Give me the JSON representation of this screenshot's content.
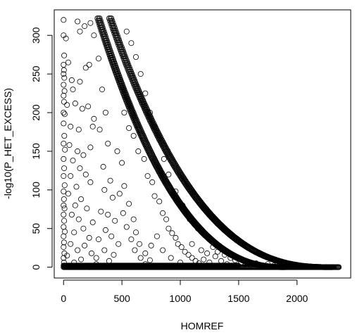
{
  "chart_data": {
    "type": "scatter",
    "title": "",
    "xlabel": "HOMREF",
    "ylabel": "-log10(P_HET_EXCESS)",
    "xlim": [
      -80,
      2460
    ],
    "ylim": [
      -14,
      333
    ],
    "x_ticks": [
      0,
      500,
      1000,
      1500,
      2000
    ],
    "y_ticks": [
      0,
      50,
      100,
      150,
      200,
      250,
      300
    ],
    "x_tick_labels": [
      "0",
      "500",
      "1000",
      "1500",
      "2000"
    ],
    "y_tick_labels": [
      "0",
      "50",
      "100",
      "150",
      "200",
      "250",
      "300"
    ],
    "marker": "open circle",
    "grid": false,
    "legend": "none",
    "series": [
      {
        "points": [
          [
            0,
            320
          ],
          [
            0,
            300
          ],
          [
            5,
            274
          ],
          [
            0,
            262
          ],
          [
            3,
            255
          ],
          [
            0,
            250
          ],
          [
            6,
            245
          ],
          [
            0,
            236
          ],
          [
            8,
            228
          ],
          [
            0,
            222
          ],
          [
            4,
            214
          ],
          [
            0,
            200
          ],
          [
            10,
            198
          ],
          [
            0,
            186
          ],
          [
            6,
            170
          ],
          [
            0,
            160
          ],
          [
            12,
            152
          ],
          [
            0,
            140
          ],
          [
            5,
            128
          ],
          [
            0,
            118
          ],
          [
            9,
            106
          ],
          [
            0,
            98
          ],
          [
            3,
            88
          ],
          [
            0,
            80
          ],
          [
            8,
            76
          ],
          [
            0,
            68
          ],
          [
            5,
            60
          ],
          [
            0,
            52
          ],
          [
            11,
            46
          ],
          [
            0,
            40
          ],
          [
            4,
            32
          ],
          [
            0,
            26
          ],
          [
            7,
            18
          ],
          [
            0,
            12
          ],
          [
            3,
            6
          ],
          [
            0,
            2
          ],
          [
            20,
            296
          ],
          [
            40,
            265
          ],
          [
            70,
            242
          ],
          [
            120,
            318
          ],
          [
            140,
            305
          ],
          [
            180,
            312
          ],
          [
            230,
            316
          ],
          [
            260,
            300
          ],
          [
            80,
            230
          ],
          [
            140,
            240
          ],
          [
            190,
            258
          ],
          [
            220,
            262
          ],
          [
            30,
            210
          ],
          [
            100,
            212
          ],
          [
            160,
            205
          ],
          [
            210,
            208
          ],
          [
            260,
            192
          ],
          [
            60,
            182
          ],
          [
            130,
            178
          ],
          [
            250,
            182
          ],
          [
            50,
            158
          ],
          [
            120,
            150
          ],
          [
            170,
            145
          ],
          [
            230,
            155
          ],
          [
            80,
            138
          ],
          [
            140,
            128
          ],
          [
            60,
            118
          ],
          [
            190,
            120
          ],
          [
            110,
            104
          ],
          [
            230,
            110
          ],
          [
            40,
            95
          ],
          [
            150,
            88
          ],
          [
            100,
            80
          ],
          [
            200,
            76
          ],
          [
            70,
            68
          ],
          [
            130,
            62
          ],
          [
            250,
            58
          ],
          [
            170,
            50
          ],
          [
            90,
            45
          ],
          [
            220,
            38
          ],
          [
            60,
            30
          ],
          [
            180,
            28
          ],
          [
            120,
            22
          ],
          [
            240,
            18
          ],
          [
            30,
            15
          ],
          [
            150,
            10
          ],
          [
            280,
            12
          ],
          [
            90,
            6
          ],
          [
            300,
            270
          ],
          [
            330,
            230
          ],
          [
            360,
            200
          ],
          [
            310,
            178
          ],
          [
            380,
            160
          ],
          [
            340,
            130
          ],
          [
            400,
            112
          ],
          [
            350,
            100
          ],
          [
            420,
            90
          ],
          [
            320,
            72
          ],
          [
            380,
            68
          ],
          [
            440,
            60
          ],
          [
            360,
            48
          ],
          [
            410,
            40
          ],
          [
            300,
            36
          ],
          [
            470,
            30
          ],
          [
            350,
            22
          ],
          [
            430,
            16
          ],
          [
            390,
            8
          ],
          [
            280,
            4
          ],
          [
            460,
            150
          ],
          [
            500,
            135
          ],
          [
            520,
            105
          ],
          [
            480,
            95
          ],
          [
            560,
            82
          ],
          [
            510,
            70
          ],
          [
            600,
            62
          ],
          [
            540,
            52
          ],
          [
            620,
            45
          ],
          [
            580,
            36
          ],
          [
            650,
            30
          ],
          [
            610,
            22
          ],
          [
            700,
            18
          ],
          [
            660,
            12
          ],
          [
            740,
            9
          ],
          [
            700,
            4
          ],
          [
            520,
            200
          ],
          [
            560,
            180
          ],
          [
            600,
            170
          ],
          [
            640,
            150
          ],
          [
            690,
            140
          ],
          [
            720,
            118
          ],
          [
            760,
            110
          ],
          [
            780,
            92
          ],
          [
            820,
            85
          ],
          [
            850,
            70
          ],
          [
            880,
            62
          ],
          [
            900,
            50
          ],
          [
            930,
            44
          ],
          [
            960,
            38
          ],
          [
            980,
            30
          ],
          [
            1010,
            26
          ],
          [
            1040,
            20
          ],
          [
            1070,
            16
          ],
          [
            1100,
            12
          ],
          [
            1130,
            8
          ],
          [
            1160,
            5
          ],
          [
            800,
            40
          ],
          [
            750,
            28
          ],
          [
            850,
            22
          ],
          [
            920,
            12
          ],
          [
            1000,
            6
          ],
          [
            1200,
            10
          ],
          [
            1250,
            6
          ],
          [
            1300,
            14
          ],
          [
            1350,
            8
          ],
          [
            1400,
            4
          ],
          [
            1100,
            30
          ],
          [
            1180,
            22
          ],
          [
            1230,
            18
          ],
          [
            1280,
            26
          ],
          [
            1320,
            20
          ],
          [
            1380,
            16
          ],
          [
            1430,
            12
          ],
          [
            1470,
            9
          ],
          [
            1520,
            6
          ],
          [
            1560,
            4
          ],
          [
            1600,
            3
          ],
          [
            1650,
            5
          ],
          [
            1700,
            2
          ],
          [
            1750,
            4
          ],
          [
            1800,
            2
          ],
          [
            1850,
            3
          ],
          [
            1900,
            1
          ],
          [
            1950,
            2
          ],
          [
            2000,
            1
          ],
          [
            2050,
            1
          ],
          [
            2100,
            0.5
          ],
          [
            2150,
            0.5
          ],
          [
            2200,
            0.3
          ],
          [
            2250,
            0.2
          ],
          [
            2300,
            0.1
          ],
          [
            2350,
            0
          ],
          [
            960,
            98
          ],
          [
            1020,
            80
          ],
          [
            1080,
            62
          ],
          [
            1150,
            50
          ],
          [
            900,
            120
          ],
          [
            860,
            140
          ],
          [
            820,
            165
          ],
          [
            780,
            182
          ],
          [
            740,
            200
          ],
          [
            700,
            225
          ],
          [
            660,
            250
          ],
          [
            620,
            272
          ],
          [
            580,
            290
          ],
          [
            540,
            305
          ]
        ]
      }
    ],
    "curves": [
      {
        "description": "dense upper band",
        "x0": 400,
        "y0": 322,
        "x1": 2300,
        "k": 2.6
      },
      {
        "description": "dense lower band",
        "x0": 300,
        "y0": 322,
        "x1": 1900,
        "k": 2.4
      }
    ]
  }
}
